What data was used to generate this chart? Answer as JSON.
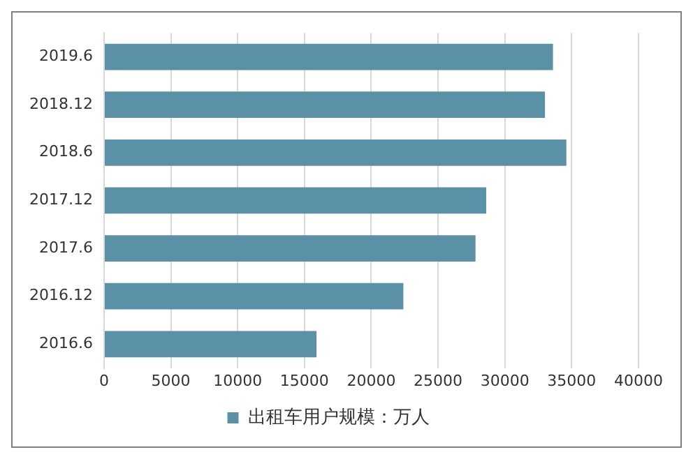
{
  "chart_data": {
    "type": "bar",
    "orientation": "horizontal",
    "categories": [
      "2019.6",
      "2018.12",
      "2018.6",
      "2017.12",
      "2017.6",
      "2016.12",
      "2016.6"
    ],
    "series": [
      {
        "name": "出租车用户规模：万人",
        "color": "#5b91a7",
        "values": [
          33600,
          33000,
          34600,
          28600,
          27800,
          22400,
          15900
        ]
      }
    ],
    "xlim": [
      0,
      40000
    ],
    "xticks": [
      0,
      5000,
      10000,
      15000,
      20000,
      25000,
      30000,
      35000,
      40000
    ],
    "grid": "x",
    "legend": "bottom"
  }
}
